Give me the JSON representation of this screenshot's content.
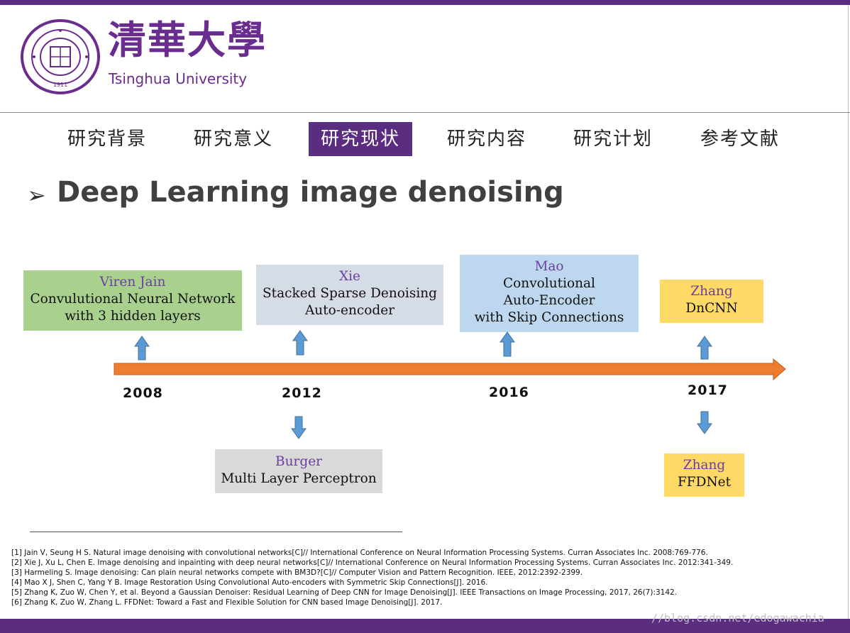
{
  "header": {
    "logo_text": "清華大學",
    "logo_subtitle": "Tsinghua University",
    "seal_year": "1911"
  },
  "nav": [
    {
      "label": "研究背景",
      "active": false
    },
    {
      "label": "研究意义",
      "active": false
    },
    {
      "label": "研究现状",
      "active": true
    },
    {
      "label": "研究内容",
      "active": false
    },
    {
      "label": "研究计划",
      "active": false
    },
    {
      "label": "参考文献",
      "active": false
    }
  ],
  "title": {
    "bullet": "➢",
    "text": "Deep Learning image denoising"
  },
  "timeline": {
    "years": [
      "2008",
      "2012",
      "2016",
      "2017"
    ],
    "boxes": [
      {
        "author": "Viren  Jain",
        "lines": [
          "Convulutional  Neural  Network",
          "with  3  hidden  layers"
        ],
        "color": "#a9d18e"
      },
      {
        "author": "Xie",
        "lines": [
          "Stacked  Sparse  Denoising",
          "Auto-encoder"
        ],
        "color": "#d6dce5"
      },
      {
        "author": "Mao",
        "lines": [
          "Convolutional",
          "Auto-Encoder",
          "with  Skip  Connections"
        ],
        "color": "#bdd7ee"
      },
      {
        "author": "Zhang",
        "lines": [
          "DnCNN"
        ],
        "color": "#ffd966"
      },
      {
        "author": "Burger",
        "lines": [
          "Multi  Layer  Perceptron"
        ],
        "color": "#d9d9d9"
      },
      {
        "author": "Zhang",
        "lines": [
          "FFDNet"
        ],
        "color": "#ffd966"
      }
    ],
    "arrow_color": "#ed7d31",
    "small_arrow_color": "#5b9bd5"
  },
  "references": [
    "[1] Jain V, Seung H S. Natural image denoising with convolutional networks[C]// International Conference on Neural Information Processing Systems. Curran Associates Inc. 2008:769-776.",
    "[2] Xie J, Xu L, Chen E. Image denoising and inpainting with deep neural networks[C]// International Conference on Neural Information Processing Systems. Curran Associates Inc. 2012:341-349.",
    "[3] Harmeling S. Image denoising: Can plain neural networks compete with BM3D?[C]// Computer Vision and Pattern Recognition. IEEE, 2012:2392-2399.",
    "[4] Mao X J, Shen C, Yang Y B. Image Restoration Using Convolutional Auto-encoders with Symmetric Skip Connections[J]. 2016.",
    "[5] Zhang K, Zuo W, Chen Y, et al. Beyond a Gaussian Denoiser: Residual Learning of Deep CNN for Image Denoising[J]. IEEE Transactions on Image Processing, 2017, 26(7):3142.",
    "[6] Zhang K, Zuo W, Zhang L. FFDNet: Toward a Fast and Flexible Solution for CNN based Image Denoising[J]. 2017."
  ],
  "watermark": "//blog.csdn.net/edogawachia",
  "colors": {
    "brand_purple": "#5a2d81",
    "logo_purple": "#6a2c8e"
  }
}
